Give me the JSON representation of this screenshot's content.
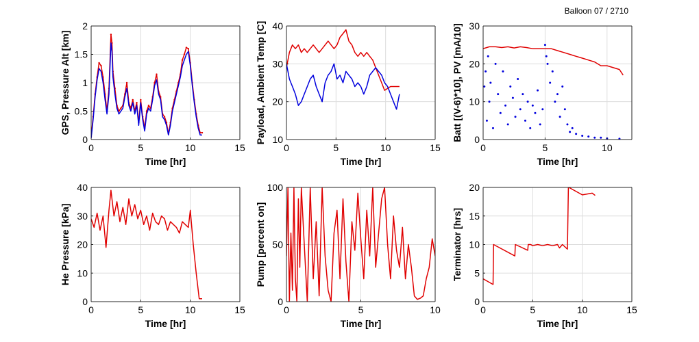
{
  "header": {
    "title": "Balloon 07 / 2710"
  },
  "colors": {
    "red": "#e00000",
    "blue": "#0000dd",
    "axis": "#262626",
    "grid": "#dcdcdc"
  },
  "chart_data": [
    {
      "type": "line",
      "xlabel": "Time [hr]",
      "ylabel": "GPS, Pressure Alt [km]",
      "xlim": [
        0,
        15
      ],
      "ylim": [
        0,
        2
      ],
      "xticks": [
        0,
        5,
        10,
        15
      ],
      "yticks": [
        0,
        0.5,
        1,
        1.5,
        2
      ],
      "ytick_labels": [
        "0",
        "0.5",
        "1",
        "1.5",
        "2"
      ],
      "grid": true,
      "series": [
        {
          "color": "#e00000",
          "marker": "dot",
          "x": [
            0,
            0.2,
            0.4,
            0.6,
            0.8,
            1.0,
            1.2,
            1.4,
            1.6,
            1.8,
            2.0,
            2.1,
            2.2,
            2.4,
            2.6,
            2.8,
            3.0,
            3.2,
            3.4,
            3.6,
            3.8,
            4.0,
            4.2,
            4.4,
            4.6,
            4.8,
            5.0,
            5.2,
            5.4,
            5.6,
            5.8,
            6.0,
            6.2,
            6.4,
            6.6,
            6.8,
            7.0,
            7.2,
            7.4,
            7.6,
            7.8,
            8.0,
            8.2,
            8.4,
            8.6,
            8.8,
            9.0,
            9.2,
            9.4,
            9.6,
            9.8,
            10.0,
            10.2,
            10.4,
            10.6,
            10.8,
            11.0,
            11.2
          ],
          "y": [
            0.05,
            0.4,
            0.8,
            1.1,
            1.35,
            1.3,
            1.1,
            0.8,
            0.5,
            0.9,
            1.85,
            1.7,
            1.2,
            0.9,
            0.6,
            0.5,
            0.55,
            0.6,
            0.8,
            1.0,
            0.65,
            0.55,
            0.7,
            0.5,
            0.65,
            0.3,
            0.7,
            0.4,
            0.2,
            0.5,
            0.6,
            0.55,
            0.75,
            1.0,
            1.15,
            0.85,
            0.75,
            0.45,
            0.4,
            0.3,
            0.1,
            0.3,
            0.55,
            0.7,
            0.85,
            1.0,
            1.15,
            1.4,
            1.5,
            1.62,
            1.6,
            1.35,
            1.0,
            0.7,
            0.45,
            0.25,
            0.12,
            0.12
          ]
        },
        {
          "color": "#0000dd",
          "marker": "none",
          "x": [
            0,
            0.2,
            0.4,
            0.6,
            0.8,
            1.0,
            1.2,
            1.4,
            1.6,
            1.8,
            2.0,
            2.1,
            2.2,
            2.4,
            2.6,
            2.8,
            3.0,
            3.2,
            3.4,
            3.6,
            3.8,
            4.0,
            4.2,
            4.4,
            4.6,
            4.8,
            5.0,
            5.2,
            5.4,
            5.6,
            5.8,
            6.0,
            6.2,
            6.4,
            6.6,
            6.8,
            7.0,
            7.2,
            7.4,
            7.6,
            7.8,
            8.0,
            8.2,
            8.4,
            8.6,
            8.8,
            9.0,
            9.2,
            9.4,
            9.6,
            9.8,
            10.0,
            10.2,
            10.4,
            10.6,
            10.8,
            11.0,
            11.2
          ],
          "y": [
            0.02,
            0.35,
            0.75,
            1.05,
            1.25,
            1.2,
            1.0,
            0.7,
            0.45,
            0.8,
            1.7,
            1.55,
            1.1,
            0.8,
            0.55,
            0.45,
            0.5,
            0.55,
            0.75,
            0.9,
            0.6,
            0.5,
            0.65,
            0.45,
            0.6,
            0.25,
            0.65,
            0.35,
            0.15,
            0.45,
            0.55,
            0.5,
            0.7,
            0.95,
            1.05,
            0.8,
            0.7,
            0.4,
            0.35,
            0.25,
            0.08,
            0.25,
            0.5,
            0.65,
            0.8,
            0.95,
            1.1,
            1.3,
            1.4,
            1.5,
            1.55,
            1.3,
            0.95,
            0.65,
            0.4,
            0.2,
            0.08,
            0.08
          ]
        }
      ]
    },
    {
      "type": "line",
      "xlabel": "Time [hr]",
      "ylabel": "Payload, Ambient Temp [C]",
      "xlim": [
        0,
        15
      ],
      "ylim": [
        10,
        40
      ],
      "xticks": [
        0,
        5,
        10,
        15
      ],
      "yticks": [
        10,
        20,
        30,
        40
      ],
      "ytick_labels": [
        "10",
        "20",
        "30",
        "40"
      ],
      "grid": true,
      "series": [
        {
          "color": "#e00000",
          "marker": "none",
          "x": [
            0,
            0.3,
            0.6,
            0.9,
            1.2,
            1.5,
            1.8,
            2.1,
            2.4,
            2.7,
            3.0,
            3.3,
            3.6,
            3.9,
            4.2,
            4.5,
            4.8,
            5.1,
            5.4,
            5.7,
            6.0,
            6.3,
            6.6,
            6.9,
            7.2,
            7.5,
            7.8,
            8.1,
            8.4,
            8.7,
            9.0,
            9.3,
            9.6,
            9.9,
            10.2,
            10.5,
            10.8,
            11.1,
            11.4
          ],
          "y": [
            29,
            33,
            35,
            34,
            35,
            33,
            34,
            33,
            34,
            35,
            34,
            33,
            34,
            35,
            36,
            35,
            34,
            35,
            37,
            38,
            39,
            36,
            35,
            33,
            32,
            33,
            32,
            33,
            32,
            31,
            29,
            27,
            25,
            23,
            23.5,
            24,
            24,
            24,
            24
          ]
        },
        {
          "color": "#0000dd",
          "marker": "none",
          "x": [
            0,
            0.3,
            0.6,
            0.9,
            1.2,
            1.5,
            1.8,
            2.1,
            2.4,
            2.7,
            3.0,
            3.3,
            3.6,
            3.9,
            4.2,
            4.5,
            4.8,
            5.1,
            5.4,
            5.7,
            6.0,
            6.3,
            6.6,
            6.9,
            7.2,
            7.5,
            7.8,
            8.1,
            8.4,
            8.7,
            9.0,
            9.3,
            9.6,
            9.9,
            10.2,
            10.5,
            10.8,
            11.1,
            11.4
          ],
          "y": [
            30,
            26,
            24,
            22,
            19,
            20,
            22,
            24,
            26,
            27,
            24,
            22,
            20,
            25,
            27,
            28,
            30,
            26,
            27,
            25,
            28,
            27,
            26,
            24,
            25,
            24,
            22,
            24,
            27,
            28,
            29,
            28,
            27,
            25,
            24,
            22,
            20,
            18,
            22
          ]
        }
      ]
    },
    {
      "type": "scatter",
      "xlabel": "Time [hr]",
      "ylabel": "Batt [(V-6)*10], PV [mA/10]",
      "xlim": [
        0,
        12
      ],
      "ylim": [
        0,
        30
      ],
      "xticks": [
        0,
        5,
        10
      ],
      "yticks": [
        0,
        10,
        20,
        30
      ],
      "ytick_labels": [
        "0",
        "10",
        "20",
        "30"
      ],
      "grid": true,
      "series": [
        {
          "color": "#e00000",
          "marker": "line",
          "x": [
            0,
            0.5,
            1.0,
            1.5,
            2.0,
            2.5,
            3.0,
            3.5,
            4.0,
            4.5,
            5.0,
            5.5,
            6.0,
            6.5,
            7.0,
            7.5,
            8.0,
            8.5,
            9.0,
            9.5,
            10.0,
            10.5,
            11.0,
            11.3
          ],
          "y": [
            24,
            24.5,
            24.5,
            24.3,
            24.5,
            24.2,
            24.5,
            24.3,
            24,
            24,
            24,
            24,
            23.5,
            23,
            22.5,
            22,
            21.5,
            21,
            20.5,
            19.5,
            19.5,
            19,
            18.5,
            17
          ]
        },
        {
          "color": "#0000dd",
          "marker": "dot",
          "x": [
            0.1,
            0.2,
            0.3,
            0.4,
            0.5,
            0.6,
            0.8,
            1.0,
            1.2,
            1.4,
            1.6,
            1.8,
            2.0,
            2.2,
            2.4,
            2.6,
            2.8,
            3.0,
            3.2,
            3.4,
            3.6,
            3.8,
            4.0,
            4.2,
            4.4,
            4.6,
            4.8,
            5.0,
            5.1,
            5.2,
            5.4,
            5.6,
            5.8,
            6.0,
            6.2,
            6.4,
            6.6,
            6.8,
            7.0,
            7.2,
            7.5,
            8.0,
            8.5,
            9.0,
            9.5,
            10.0,
            11.0
          ],
          "y": [
            14,
            18,
            5,
            22,
            10,
            15,
            3,
            20,
            12,
            7,
            18,
            9,
            4,
            14,
            11,
            6,
            16,
            8,
            12,
            5,
            10,
            3,
            9,
            7,
            13,
            4,
            8,
            25,
            22,
            20,
            15,
            18,
            10,
            12,
            6,
            14,
            8,
            4,
            2,
            3,
            1.5,
            1,
            0.8,
            0.5,
            0.5,
            0.3,
            0.2
          ]
        }
      ]
    },
    {
      "type": "line",
      "xlabel": "Time [hr]",
      "ylabel": "He Pressure [kPa]",
      "xlim": [
        0,
        15
      ],
      "ylim": [
        0,
        40
      ],
      "xticks": [
        0,
        5,
        10,
        15
      ],
      "yticks": [
        0,
        10,
        20,
        30,
        40
      ],
      "ytick_labels": [
        "0",
        "10",
        "20",
        "30",
        "40"
      ],
      "grid": true,
      "series": [
        {
          "color": "#e00000",
          "marker": "none",
          "x": [
            0,
            0.3,
            0.6,
            0.9,
            1.2,
            1.5,
            1.8,
            2.0,
            2.3,
            2.6,
            2.9,
            3.2,
            3.5,
            3.8,
            4.1,
            4.4,
            4.7,
            5.0,
            5.3,
            5.6,
            5.9,
            6.2,
            6.5,
            6.8,
            7.1,
            7.4,
            7.7,
            8.0,
            8.3,
            8.6,
            8.9,
            9.2,
            9.5,
            9.8,
            10.0,
            10.3,
            10.6,
            10.9,
            11.2
          ],
          "y": [
            29,
            26,
            31,
            25,
            30,
            19,
            32,
            39,
            30,
            35,
            28,
            33,
            27,
            36,
            30,
            34,
            29,
            32,
            27,
            30,
            25,
            31,
            28,
            27,
            30,
            29,
            25,
            28,
            27,
            26,
            24,
            28,
            27,
            26,
            32,
            20,
            10,
            1,
            1
          ]
        }
      ]
    },
    {
      "type": "line",
      "xlabel": "Time [hr]",
      "ylabel": "Pump [percent on]",
      "xlim": [
        0,
        10
      ],
      "ylim": [
        0,
        100
      ],
      "xticks": [
        0,
        5,
        10
      ],
      "yticks": [
        0,
        50,
        100
      ],
      "ytick_labels": [
        "0",
        "50",
        "100"
      ],
      "grid": true,
      "series": [
        {
          "color": "#e00000",
          "marker": "none",
          "x": [
            0,
            0.1,
            0.2,
            0.3,
            0.4,
            0.5,
            0.6,
            0.7,
            0.8,
            0.9,
            1.0,
            1.2,
            1.4,
            1.6,
            1.8,
            2.0,
            2.2,
            2.4,
            2.6,
            2.8,
            3.0,
            3.2,
            3.4,
            3.6,
            3.8,
            4.0,
            4.2,
            4.4,
            4.6,
            4.8,
            5.0,
            5.2,
            5.4,
            5.6,
            5.8,
            6.0,
            6.2,
            6.4,
            6.6,
            6.8,
            7.0,
            7.2,
            7.4,
            7.6,
            7.8,
            8.0,
            8.2,
            8.4,
            8.6,
            8.8,
            9.0,
            9.2,
            9.4,
            9.6,
            9.8,
            10.0
          ],
          "y": [
            40,
            100,
            0,
            60,
            10,
            100,
            20,
            0,
            90,
            30,
            100,
            50,
            0,
            100,
            20,
            70,
            5,
            100,
            40,
            10,
            0,
            60,
            80,
            20,
            90,
            35,
            0,
            70,
            45,
            95,
            55,
            20,
            80,
            40,
            100,
            30,
            60,
            90,
            100,
            50,
            20,
            75,
            45,
            30,
            65,
            20,
            50,
            30,
            5,
            2,
            3,
            5,
            20,
            30,
            55,
            40
          ]
        }
      ]
    },
    {
      "type": "line",
      "xlabel": "Time [hr]",
      "ylabel": "Terminator [hrs]",
      "xlim": [
        0,
        15
      ],
      "ylim": [
        0,
        20
      ],
      "xticks": [
        0,
        5,
        10,
        15
      ],
      "yticks": [
        0,
        5,
        10,
        15,
        20
      ],
      "ytick_labels": [
        "0",
        "5",
        "10",
        "15",
        "20"
      ],
      "grid": true,
      "series": [
        {
          "color": "#e00000",
          "marker": "none",
          "x": [
            0,
            1.0,
            1.05,
            3.2,
            3.25,
            4.5,
            4.55,
            4.8,
            5.0,
            5.5,
            6.0,
            6.5,
            7.0,
            7.5,
            7.7,
            8.0,
            8.5,
            8.6,
            8.65,
            10.0,
            11.0,
            11.3
          ],
          "y": [
            4,
            3,
            10,
            8,
            10,
            9,
            10,
            10,
            9.8,
            10,
            9.8,
            10,
            9.8,
            10,
            9.4,
            10,
            9.2,
            20,
            20,
            18.7,
            19,
            18.6
          ]
        }
      ]
    }
  ]
}
